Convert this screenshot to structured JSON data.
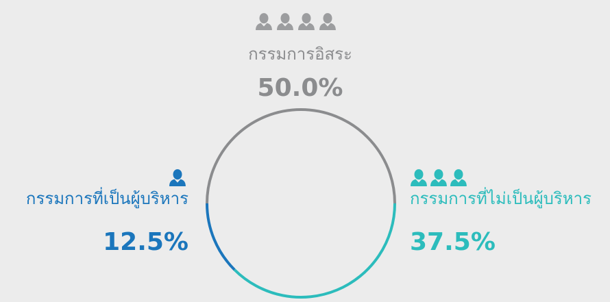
{
  "chart_data": {
    "type": "ring",
    "categories": [
      "กรรมการอิสระ",
      "กรรมการที่ไม่เป็นผู้บริหาร",
      "กรรมการที่เป็นผู้บริหาร"
    ],
    "values": [
      50,
      37.5,
      12.5
    ],
    "value_labels": [
      "50.0%",
      "37.5%",
      "12.5%"
    ],
    "colors": [
      "#8b8c8e",
      "#2cbcbc",
      "#1b76bc"
    ]
  }
}
